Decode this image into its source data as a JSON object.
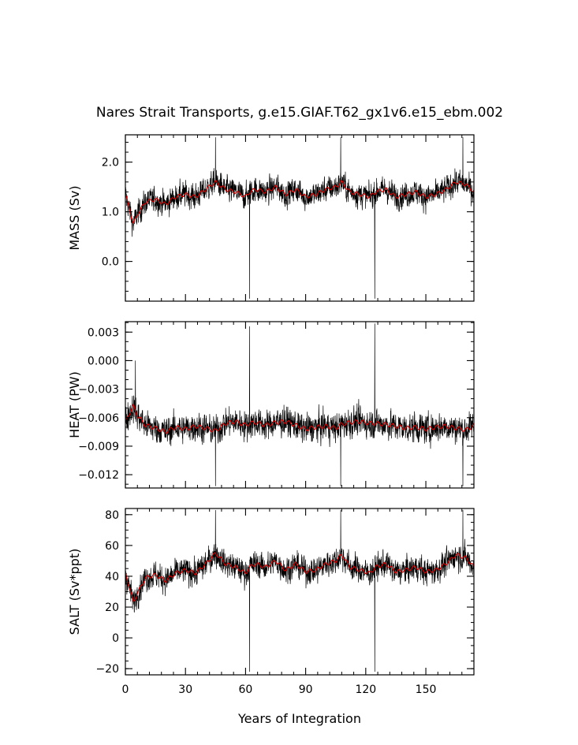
{
  "chart_data": {
    "type": "line",
    "title": "Nares Strait Transports, g.e15.GIAF.T62_gx1v6.e15_ebm.002",
    "xlabel": "Years of Integration",
    "xlim": [
      0,
      174
    ],
    "xticks": [
      0,
      30,
      60,
      90,
      120,
      150
    ],
    "xtick_labels": [
      "0",
      "30",
      "60",
      "90",
      "120",
      "150"
    ],
    "series_names_note": "",
    "colors": {
      "raw": "#000000",
      "smoothed": "#cc0000"
    },
    "panels": [
      {
        "ylabel": "MASS (Sv)",
        "ylim": [
          -0.8,
          2.55
        ],
        "yticks": [
          0.0,
          1.0,
          2.0
        ],
        "ytick_labels": [
          "0.0",
          "1.0",
          "2.0"
        ],
        "yminor_step": 0.2,
        "smoothed": {
          "x": [
            0,
            2,
            4,
            6,
            10,
            15,
            20,
            25,
            30,
            35,
            40,
            45,
            50,
            55,
            60,
            62,
            65,
            70,
            75,
            80,
            85,
            90,
            95,
            100,
            105,
            108,
            112,
            117,
            122,
            125,
            130,
            135,
            140,
            145,
            150,
            155,
            160,
            165,
            170,
            174
          ],
          "y": [
            1.35,
            1.05,
            0.75,
            0.95,
            1.2,
            1.25,
            1.15,
            1.3,
            1.35,
            1.3,
            1.45,
            1.6,
            1.45,
            1.4,
            1.3,
            1.4,
            1.45,
            1.4,
            1.5,
            1.35,
            1.45,
            1.3,
            1.35,
            1.45,
            1.5,
            1.6,
            1.4,
            1.35,
            1.3,
            1.4,
            1.45,
            1.3,
            1.35,
            1.4,
            1.3,
            1.35,
            1.45,
            1.6,
            1.55,
            1.4
          ]
        },
        "noise_amp": 0.3,
        "spikes": [
          {
            "x": 45,
            "y": 2.5
          },
          {
            "x": 62,
            "y": -0.75
          },
          {
            "x": 107.5,
            "y": 2.5
          },
          {
            "x": 124.5,
            "y": -0.75
          },
          {
            "x": 168.5,
            "y": 2.5
          }
        ]
      },
      {
        "ylabel": "HEAT (PW)",
        "ylim": [
          -0.0134,
          0.0041
        ],
        "yticks": [
          -0.012,
          -0.009,
          -0.006,
          -0.003,
          0.0,
          0.003
        ],
        "ytick_labels": [
          "−0.012",
          "−0.009",
          "−0.006",
          "−0.003",
          "0.000",
          "0.003"
        ],
        "yminor_step": 0.001,
        "smoothed": {
          "x": [
            0,
            2,
            4,
            6,
            10,
            15,
            20,
            25,
            30,
            35,
            40,
            45,
            50,
            55,
            60,
            62,
            65,
            70,
            75,
            80,
            85,
            90,
            95,
            100,
            105,
            108,
            112,
            117,
            122,
            125,
            130,
            135,
            140,
            145,
            150,
            155,
            160,
            165,
            170,
            174
          ],
          "y": [
            -0.0065,
            -0.0055,
            -0.0048,
            -0.0058,
            -0.0068,
            -0.0071,
            -0.0075,
            -0.007,
            -0.0072,
            -0.0069,
            -0.0071,
            -0.0074,
            -0.0066,
            -0.0064,
            -0.0068,
            -0.0066,
            -0.0065,
            -0.0068,
            -0.0065,
            -0.0064,
            -0.0068,
            -0.0072,
            -0.007,
            -0.0069,
            -0.0071,
            -0.0067,
            -0.0065,
            -0.0064,
            -0.0066,
            -0.0066,
            -0.0067,
            -0.0069,
            -0.0071,
            -0.007,
            -0.0072,
            -0.007,
            -0.0069,
            -0.0071,
            -0.0073,
            -0.0068
          ]
        },
        "noise_amp": 0.0018,
        "spikes": [
          {
            "x": 5,
            "y": 0.0
          },
          {
            "x": 45,
            "y": -0.0132
          },
          {
            "x": 62,
            "y": 0.0036
          },
          {
            "x": 107.5,
            "y": -0.0132
          },
          {
            "x": 124.5,
            "y": 0.0039
          },
          {
            "x": 168.5,
            "y": -0.0132
          }
        ]
      },
      {
        "ylabel": "SALT (Sv*ppt)",
        "ylim": [
          -24,
          84
        ],
        "yticks": [
          -20,
          0,
          20,
          40,
          60,
          80
        ],
        "ytick_labels": [
          "−20",
          "0",
          "20",
          "40",
          "60",
          "80"
        ],
        "yminor_step": 5,
        "smoothed": {
          "x": [
            0,
            2,
            4,
            6,
            10,
            15,
            20,
            25,
            30,
            35,
            40,
            45,
            50,
            55,
            60,
            62,
            65,
            70,
            75,
            80,
            85,
            90,
            95,
            100,
            105,
            108,
            112,
            117,
            122,
            125,
            130,
            135,
            140,
            145,
            150,
            155,
            160,
            165,
            170,
            174
          ],
          "y": [
            42,
            33,
            23,
            29,
            39,
            41,
            37,
            42,
            44,
            42,
            48,
            55,
            48,
            46,
            42,
            46,
            48,
            46,
            50,
            44,
            48,
            43,
            44,
            48,
            50,
            54,
            46,
            44,
            42,
            46,
            48,
            43,
            44,
            46,
            43,
            44,
            48,
            54,
            52,
            46
          ]
        },
        "noise_amp": 10,
        "spikes": [
          {
            "x": 45,
            "y": 83
          },
          {
            "x": 62,
            "y": -22
          },
          {
            "x": 107.5,
            "y": 83
          },
          {
            "x": 124.5,
            "y": -22
          },
          {
            "x": 168.5,
            "y": 83
          }
        ]
      }
    ]
  }
}
